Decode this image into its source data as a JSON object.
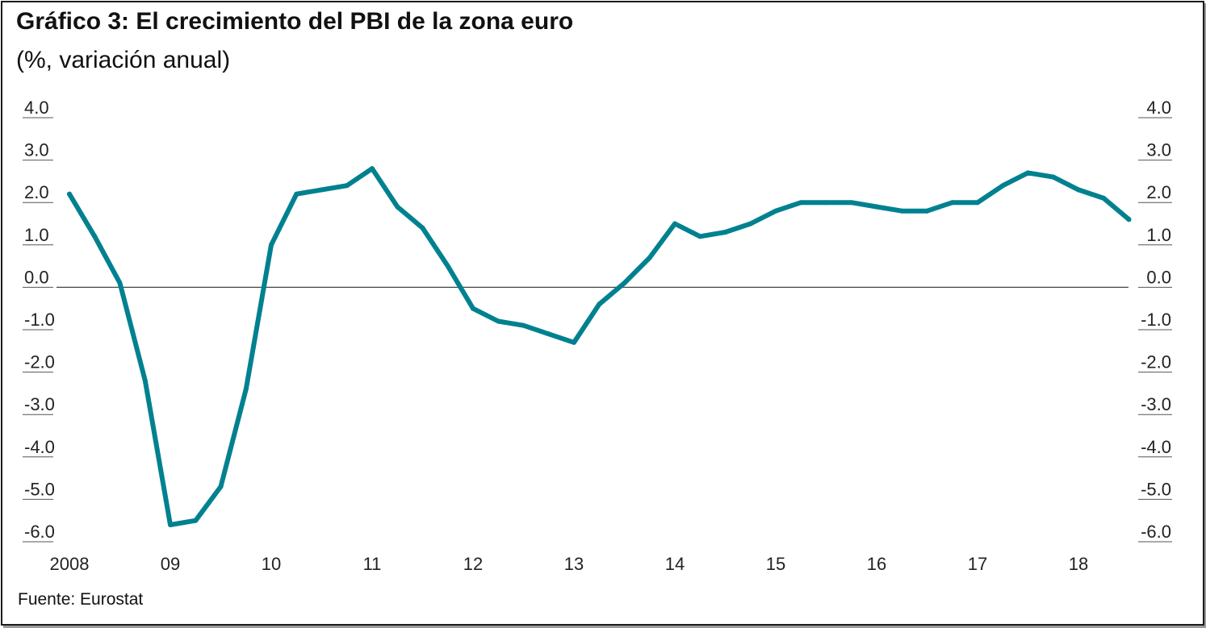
{
  "title": "Gráfico 3: El crecimiento del PBI de la zona euro",
  "subtitle": "(%, variación anual)",
  "source": "Fuente: Eurostat",
  "chart_data": {
    "type": "line",
    "title": "Gráfico 3: El crecimiento del PBI de la zona euro",
    "subtitle": "(%, variación anual)",
    "xlabel": "",
    "ylabel": "",
    "ylim": [
      -6.0,
      4.0
    ],
    "y_ticks": [
      "4.0",
      "3.0",
      "2.0",
      "1.0",
      "0.0",
      "-1.0",
      "-2.0",
      "-3.0",
      "-4.0",
      "-5.0",
      "-6.0"
    ],
    "x_tick_labels": [
      "2008",
      "09",
      "10",
      "11",
      "12",
      "13",
      "14",
      "15",
      "16",
      "17",
      "18"
    ],
    "axes": "left and right y axes mirror each other",
    "color": "#00818f",
    "x": [
      "2008Q1",
      "2008Q2",
      "2008Q3",
      "2008Q4",
      "2009Q1",
      "2009Q2",
      "2009Q3",
      "2009Q4",
      "2010Q1",
      "2010Q2",
      "2010Q3",
      "2010Q4",
      "2011Q1",
      "2011Q2",
      "2011Q3",
      "2011Q4",
      "2012Q1",
      "2012Q2",
      "2012Q3",
      "2012Q4",
      "2013Q1",
      "2013Q2",
      "2013Q3",
      "2013Q4",
      "2014Q1",
      "2014Q2",
      "2014Q3",
      "2014Q4",
      "2015Q1",
      "2015Q2",
      "2015Q3",
      "2015Q4",
      "2016Q1",
      "2016Q2",
      "2016Q3",
      "2016Q4",
      "2017Q1",
      "2017Q2",
      "2017Q3",
      "2017Q4",
      "2018Q1",
      "2018Q2",
      "2018Q3"
    ],
    "values": [
      2.2,
      1.2,
      0.1,
      -2.2,
      -5.6,
      -5.5,
      -4.7,
      -2.4,
      1.0,
      2.2,
      2.3,
      2.4,
      2.8,
      1.9,
      1.4,
      0.5,
      -0.5,
      -0.8,
      -0.9,
      -1.1,
      -1.3,
      -0.4,
      0.1,
      0.7,
      1.5,
      1.2,
      1.3,
      1.5,
      1.8,
      2.0,
      2.0,
      2.0,
      1.9,
      1.8,
      1.8,
      2.0,
      2.0,
      2.4,
      2.7,
      2.6,
      2.3,
      2.1,
      1.6
    ]
  }
}
